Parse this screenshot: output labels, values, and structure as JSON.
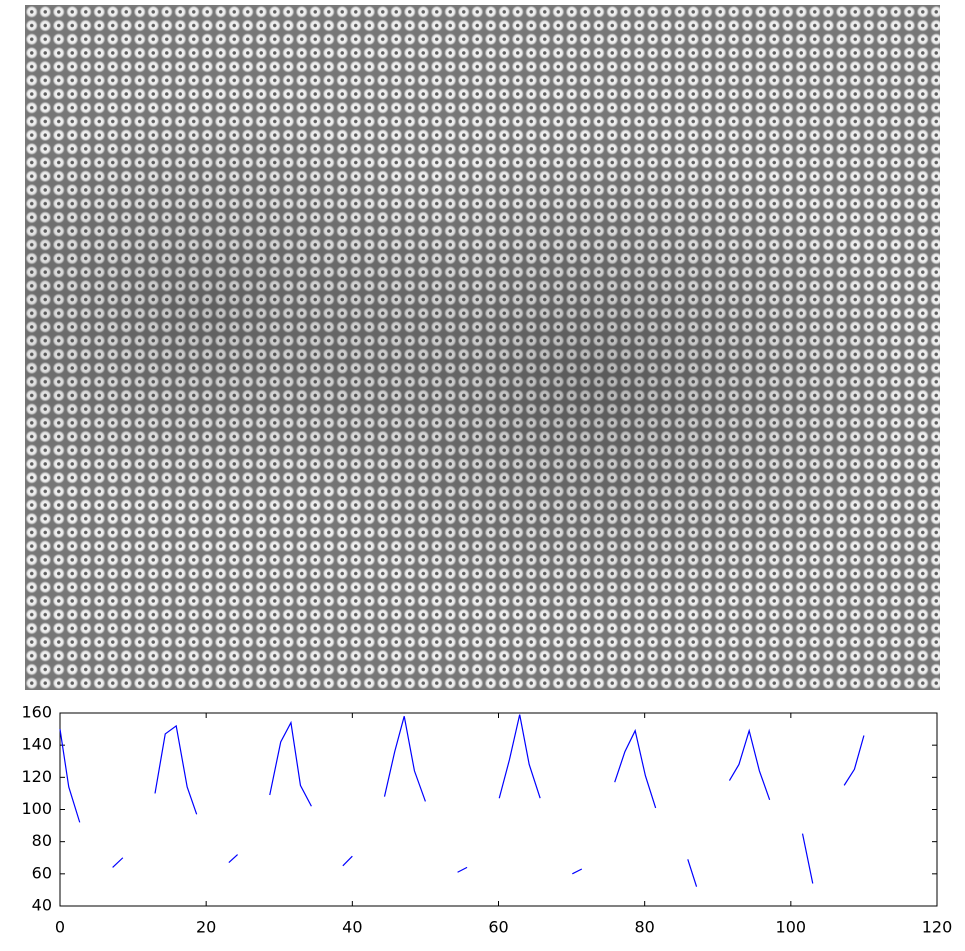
{
  "chart_data": {
    "type": "line",
    "x": [
      0,
      1.2,
      2.7,
      null,
      7.2,
      8.6,
      null,
      13,
      14.4,
      15.9,
      17.4,
      18.7,
      null,
      23.1,
      24.3,
      null,
      28.7,
      30.2,
      31.6,
      32.9,
      34.4,
      null,
      38.7,
      40,
      null,
      44.4,
      45.8,
      47.1,
      48.5,
      50,
      null,
      54.4,
      55.7,
      null,
      60.1,
      61.5,
      62.9,
      64.2,
      65.7,
      null,
      70.1,
      71.4,
      null,
      75.9,
      77.3,
      78.7,
      80.1,
      81.5,
      null,
      85.9,
      87.1,
      null,
      91.6,
      92.9,
      94.3,
      95.7,
      97.1,
      null,
      101.6,
      103,
      null,
      107.3,
      108.7,
      110
    ],
    "series": [
      {
        "color": "#0000ff",
        "values": [
          150,
          114,
          92,
          null,
          64,
          70,
          null,
          110,
          147,
          152,
          114,
          97,
          null,
          67,
          72,
          null,
          109,
          142,
          154,
          115,
          102,
          null,
          65,
          71,
          null,
          108,
          136,
          158,
          124,
          105,
          null,
          61,
          64,
          null,
          107,
          131,
          159,
          128,
          107,
          null,
          60,
          63,
          null,
          117,
          136,
          149,
          121,
          101,
          null,
          69,
          52,
          null,
          118,
          128,
          149,
          124,
          106,
          null,
          85,
          54,
          null,
          115,
          125,
          146
        ]
      }
    ],
    "xlim": [
      0,
      120
    ],
    "xticks": [
      0,
      20,
      40,
      60,
      80,
      100,
      120
    ],
    "ylim": [
      40,
      160
    ],
    "yticks": [
      40,
      60,
      80,
      100,
      120,
      140,
      160
    ]
  }
}
